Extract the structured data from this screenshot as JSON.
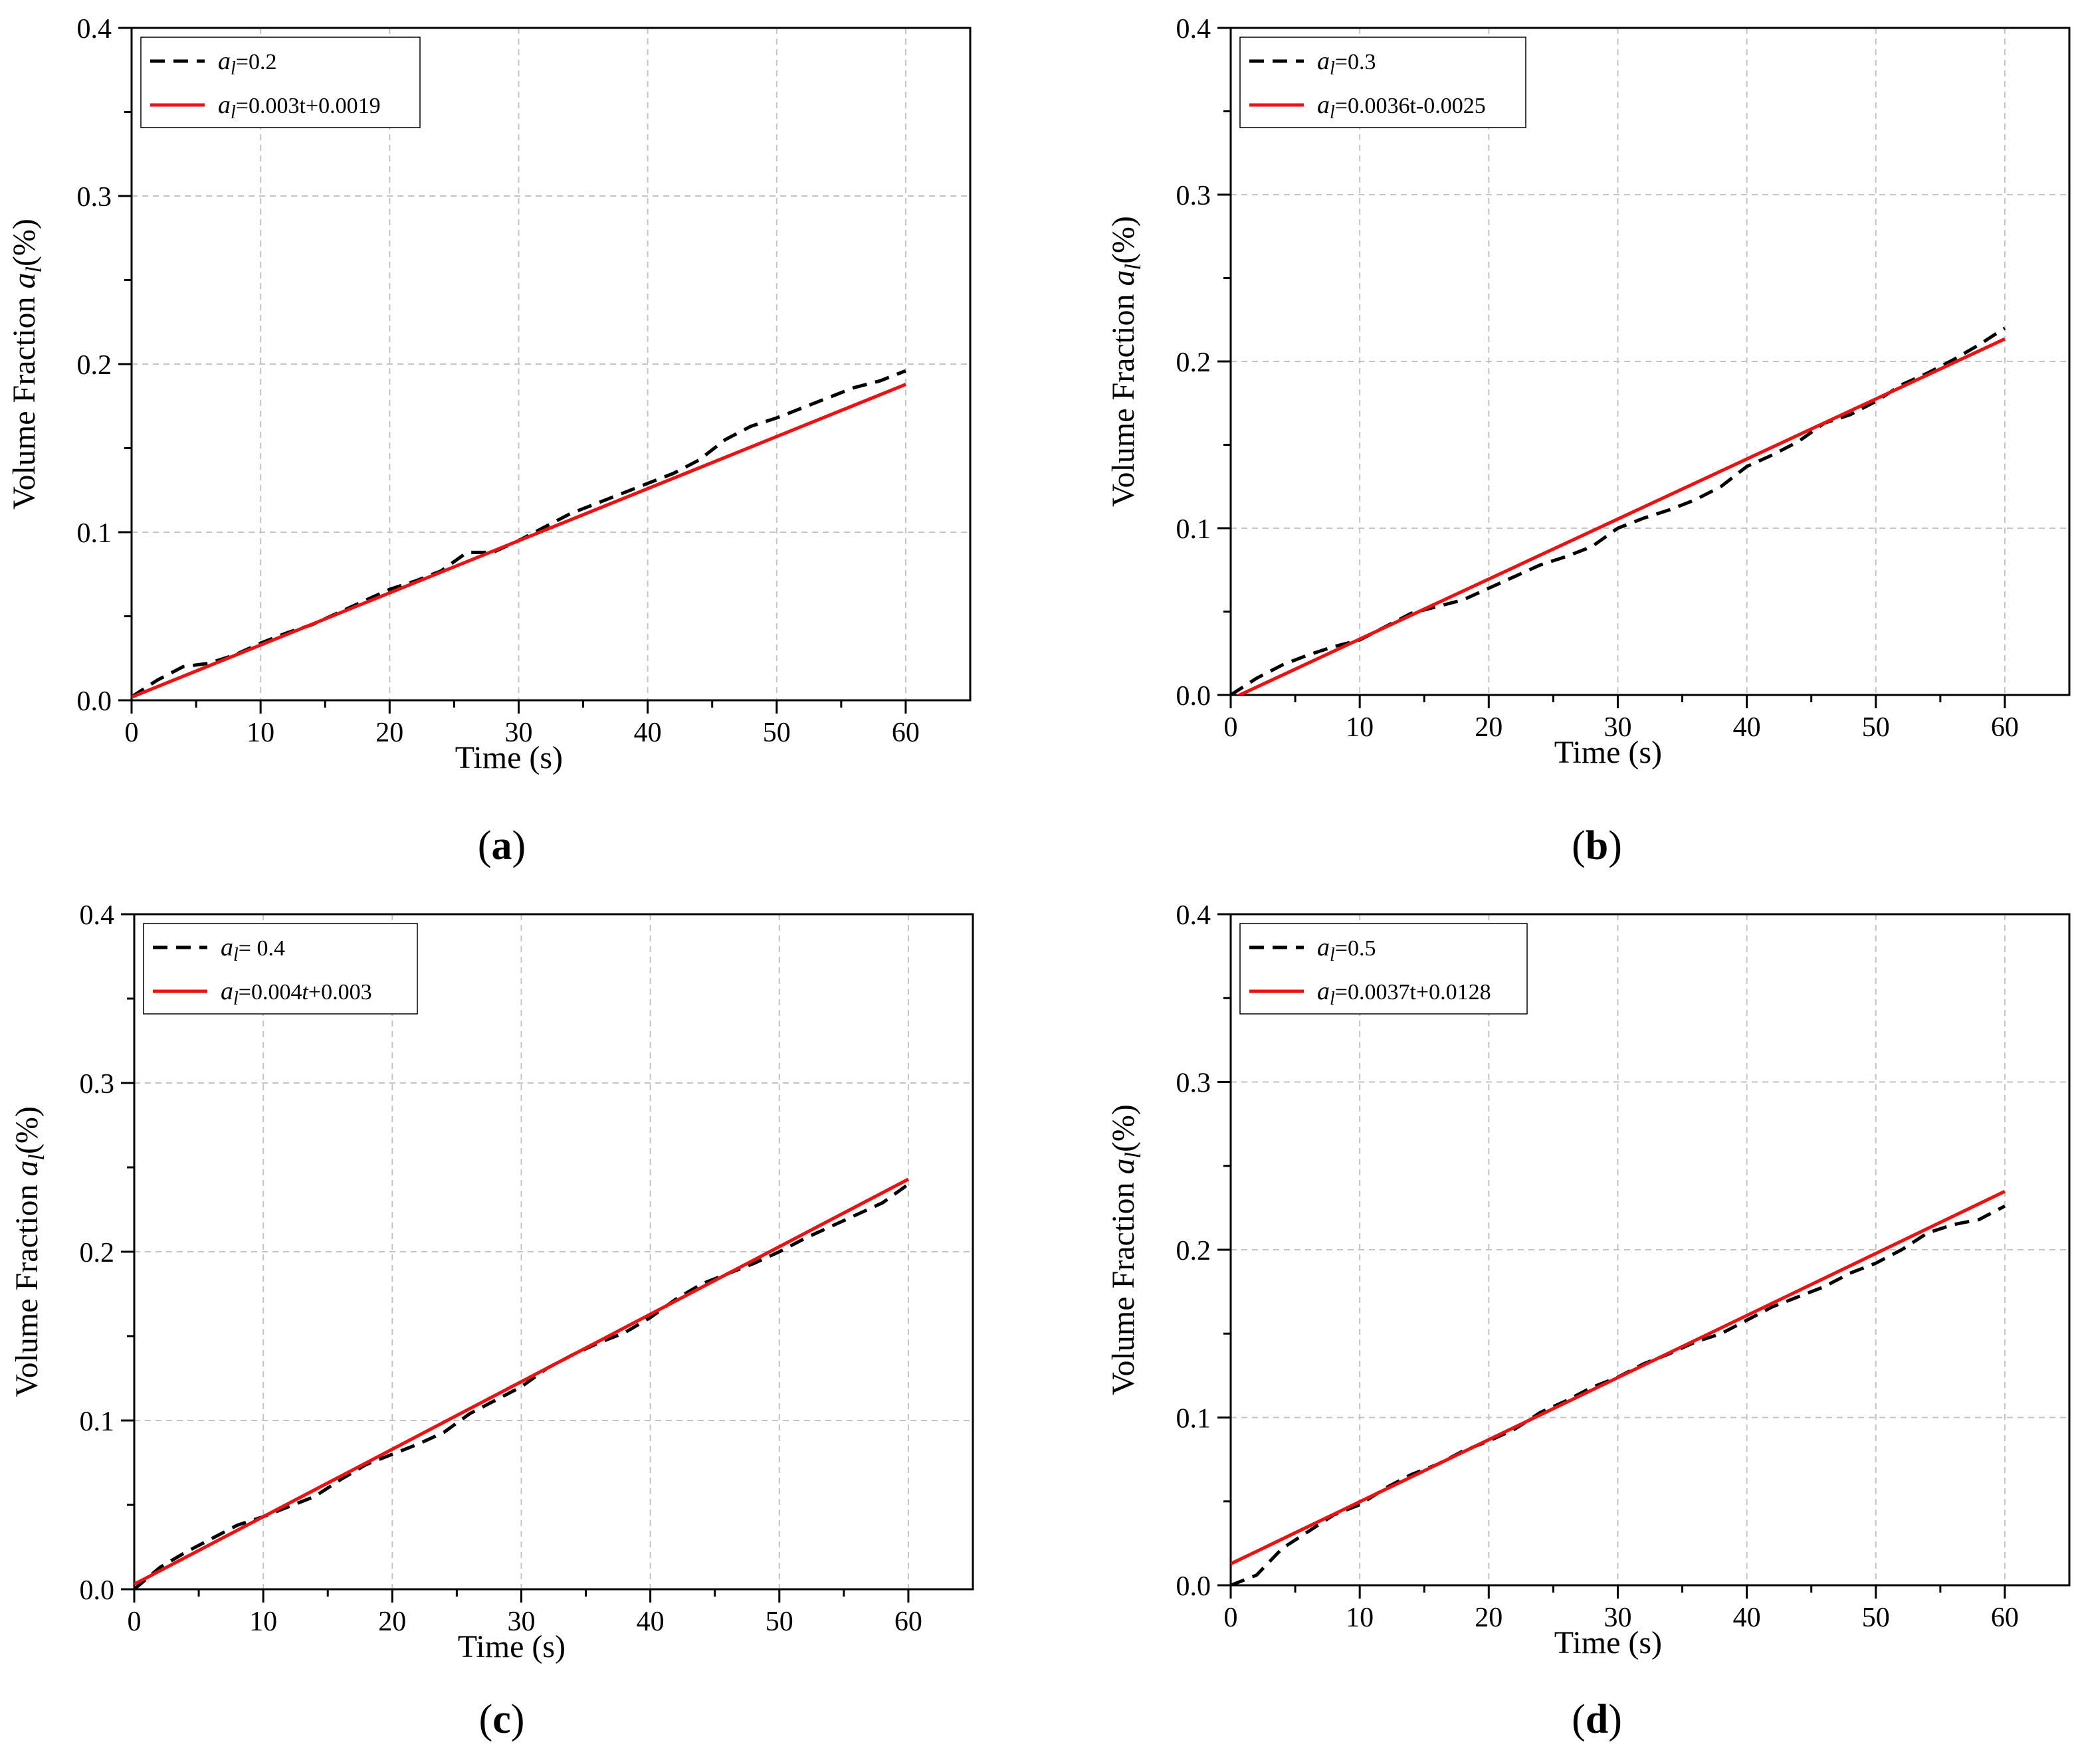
{
  "chart_data": [
    {
      "id": "a",
      "type": "line",
      "caption": "a",
      "xlabel": "Time (s)",
      "ylabel_prefix": "Volume Fraction ",
      "ylabel_sym": "a",
      "ylabel_sub": "l",
      "ylabel_suffix": "(%)",
      "xlim": [
        0,
        65
      ],
      "ylim": [
        0,
        0.4
      ],
      "xticks": [
        0,
        10,
        20,
        30,
        40,
        50,
        60
      ],
      "yticks": [
        0.0,
        0.1,
        0.2,
        0.3,
        0.4
      ],
      "xtick_labels": [
        "0",
        "10",
        "20",
        "30",
        "40",
        "50",
        "60"
      ],
      "ytick_labels": [
        "0.0",
        "0.1",
        "0.2",
        "0.3",
        "0.4"
      ],
      "grid": true,
      "legend_position": "top-left",
      "series": [
        {
          "name": "a_l=0.2",
          "legend_sym": "a",
          "legend_sub": "l",
          "legend_rest": "=0.2",
          "style": "dashed",
          "color": "#000000",
          "x": [
            0,
            2,
            4,
            6,
            8,
            10,
            12,
            14,
            16,
            18,
            20,
            22,
            24,
            26,
            28,
            30,
            32,
            34,
            36,
            38,
            40,
            42,
            44,
            46,
            48,
            50,
            52,
            54,
            56,
            58,
            60
          ],
          "y": [
            0.002,
            0.012,
            0.02,
            0.022,
            0.027,
            0.034,
            0.04,
            0.045,
            0.052,
            0.059,
            0.066,
            0.071,
            0.077,
            0.088,
            0.088,
            0.095,
            0.103,
            0.111,
            0.117,
            0.123,
            0.129,
            0.135,
            0.143,
            0.155,
            0.163,
            0.168,
            0.174,
            0.18,
            0.186,
            0.19,
            0.196
          ]
        },
        {
          "name": "a_l=0.003t+0.0019",
          "legend_sym": "a",
          "legend_sub": "l",
          "legend_rest": "=0.003t+0.0019",
          "style": "solid",
          "color": "#ee1111",
          "slope": 0.0031,
          "intercept": 0.0019,
          "x": [
            0,
            60
          ]
        }
      ]
    },
    {
      "id": "b",
      "type": "line",
      "caption": "b",
      "xlabel": "Time (s)",
      "ylabel_prefix": "Volume Fraction ",
      "ylabel_sym": "a",
      "ylabel_sub": "l",
      "ylabel_suffix": "(%)",
      "xlim": [
        0,
        65
      ],
      "ylim": [
        0,
        0.4
      ],
      "xticks": [
        0,
        10,
        20,
        30,
        40,
        50,
        60
      ],
      "yticks": [
        0.0,
        0.1,
        0.2,
        0.3,
        0.4
      ],
      "xtick_labels": [
        "0",
        "10",
        "20",
        "30",
        "40",
        "50",
        "60"
      ],
      "ytick_labels": [
        "0.0",
        "0.1",
        "0.2",
        "0.3",
        "0.4"
      ],
      "grid": true,
      "legend_position": "top-left",
      "series": [
        {
          "name": "a_l=0.3",
          "legend_sym": "a",
          "legend_sub": "l",
          "legend_rest": "=0.3",
          "style": "dashed",
          "color": "#000000",
          "x": [
            0,
            2,
            4,
            6,
            8,
            10,
            12,
            14,
            16,
            18,
            20,
            22,
            24,
            26,
            28,
            30,
            32,
            34,
            36,
            38,
            40,
            42,
            44,
            46,
            48,
            50,
            52,
            54,
            56,
            58,
            60
          ],
          "y": [
            0.0,
            0.01,
            0.018,
            0.024,
            0.029,
            0.033,
            0.041,
            0.049,
            0.053,
            0.057,
            0.064,
            0.071,
            0.078,
            0.083,
            0.089,
            0.1,
            0.106,
            0.111,
            0.117,
            0.125,
            0.137,
            0.144,
            0.152,
            0.163,
            0.168,
            0.176,
            0.186,
            0.193,
            0.201,
            0.21,
            0.22
          ]
        },
        {
          "name": "a_l=0.0036t-0.0025",
          "legend_sym": "a",
          "legend_sub": "l",
          "legend_rest": "=0.0036t-0.0025",
          "style": "solid",
          "color": "#ee1111",
          "slope": 0.0036,
          "intercept": -0.0025,
          "x": [
            0,
            60
          ]
        }
      ]
    },
    {
      "id": "c",
      "type": "line",
      "caption": "c",
      "xlabel": "Time (s)",
      "ylabel_prefix": "Volume Fraction ",
      "ylabel_sym": "a",
      "ylabel_sub": "l",
      "ylabel_suffix": "(%)",
      "xlim": [
        0,
        65
      ],
      "ylim": [
        0,
        0.4
      ],
      "xticks": [
        0,
        10,
        20,
        30,
        40,
        50,
        60
      ],
      "yticks": [
        0.0,
        0.1,
        0.2,
        0.3,
        0.4
      ],
      "xtick_labels": [
        "0",
        "10",
        "20",
        "30",
        "40",
        "50",
        "60"
      ],
      "ytick_labels": [
        "0.0",
        "0.1",
        "0.2",
        "0.3",
        "0.4"
      ],
      "grid": true,
      "legend_position": "top-left",
      "series": [
        {
          "name": "a_l= 0.4",
          "legend_sym": "a",
          "legend_sub": "l",
          "legend_rest": "= 0.4",
          "style": "dashed",
          "color": "#000000",
          "x": [
            0,
            2,
            4,
            6,
            8,
            10,
            12,
            14,
            16,
            18,
            20,
            22,
            24,
            26,
            28,
            30,
            32,
            34,
            36,
            38,
            40,
            42,
            44,
            46,
            48,
            50,
            52,
            54,
            56,
            58,
            60
          ],
          "y": [
            0.0,
            0.013,
            0.022,
            0.03,
            0.038,
            0.043,
            0.049,
            0.055,
            0.065,
            0.074,
            0.08,
            0.086,
            0.093,
            0.104,
            0.112,
            0.12,
            0.131,
            0.139,
            0.146,
            0.152,
            0.161,
            0.172,
            0.181,
            0.187,
            0.193,
            0.2,
            0.208,
            0.215,
            0.222,
            0.229,
            0.24
          ]
        },
        {
          "name": "a_l=0.004t+0.003",
          "legend_sym": "a",
          "legend_sub": "l",
          "legend_rest_pre": "=0.004",
          "legend_rest_t": "t",
          "legend_rest_post": "+0.003",
          "style": "solid",
          "color": "#ee1111",
          "slope": 0.004,
          "intercept": 0.003,
          "x": [
            0,
            60
          ]
        }
      ]
    },
    {
      "id": "d",
      "type": "line",
      "caption": "d",
      "xlabel": "Time (s)",
      "ylabel_prefix": "Volume Fraction ",
      "ylabel_sym": "a",
      "ylabel_sub": "l",
      "ylabel_suffix": "(%)",
      "xlim": [
        0,
        65
      ],
      "ylim": [
        0,
        0.4
      ],
      "xticks": [
        0,
        10,
        20,
        30,
        40,
        50,
        60
      ],
      "yticks": [
        0.0,
        0.1,
        0.2,
        0.3,
        0.4
      ],
      "xtick_labels": [
        "0",
        "10",
        "20",
        "30",
        "40",
        "50",
        "60"
      ],
      "ytick_labels": [
        "0.0",
        "0.1",
        "0.2",
        "0.3",
        "0.4"
      ],
      "grid": true,
      "legend_position": "top-left",
      "series": [
        {
          "name": "a_l=0.5",
          "legend_sym": "a",
          "legend_sub": "l",
          "legend_rest": "=0.5",
          "style": "dashed",
          "color": "#000000",
          "x": [
            0,
            2,
            4,
            6,
            8,
            10,
            12,
            14,
            16,
            18,
            20,
            22,
            24,
            26,
            28,
            30,
            32,
            34,
            36,
            38,
            40,
            42,
            44,
            46,
            48,
            50,
            52,
            54,
            56,
            58,
            60
          ],
          "y": [
            0.0,
            0.006,
            0.022,
            0.032,
            0.042,
            0.048,
            0.058,
            0.066,
            0.072,
            0.08,
            0.086,
            0.093,
            0.103,
            0.11,
            0.118,
            0.124,
            0.132,
            0.138,
            0.145,
            0.15,
            0.158,
            0.166,
            0.172,
            0.178,
            0.186,
            0.192,
            0.2,
            0.21,
            0.215,
            0.218,
            0.226
          ]
        },
        {
          "name": "a_l=0.0037t+0.0128",
          "legend_sym": "a",
          "legend_sub": "l",
          "legend_rest": "=0.0037t+0.0128",
          "style": "solid",
          "color": "#ee1111",
          "slope": 0.0037,
          "intercept": 0.0128,
          "x": [
            0,
            60
          ]
        }
      ]
    }
  ]
}
